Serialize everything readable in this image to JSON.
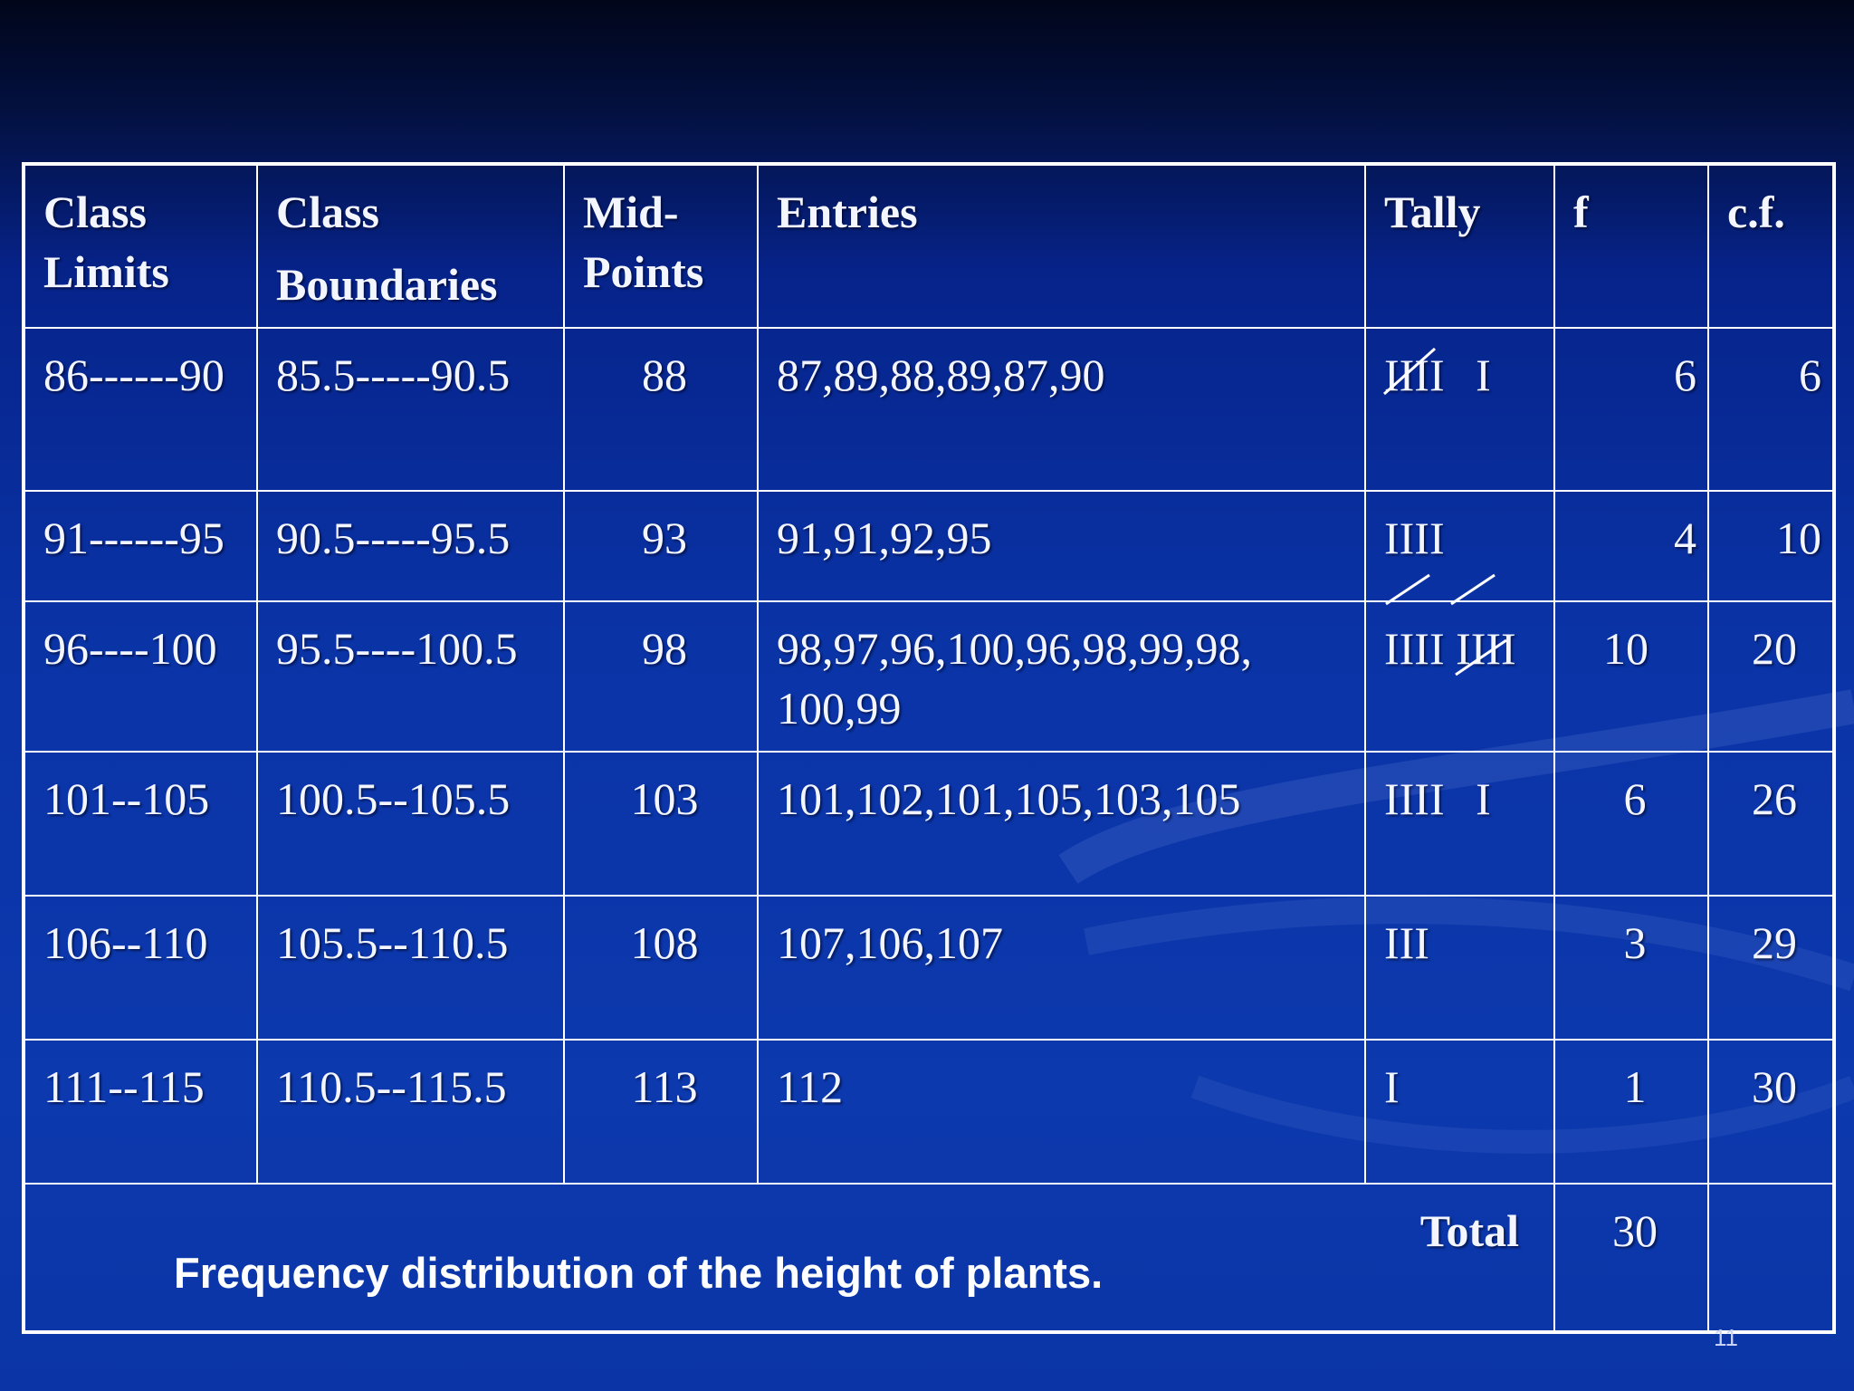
{
  "table": {
    "headers": {
      "class_limits": [
        "Class",
        "Limits"
      ],
      "class_boundaries": [
        "Class",
        "Boundaries"
      ],
      "mid_points": [
        "Mid-",
        "Points"
      ],
      "entries": "Entries",
      "tally": "Tally",
      "f": "f",
      "cf": "c.f."
    },
    "rows": [
      {
        "limits": "86------90",
        "boundaries": "85.5-----90.5",
        "mid": "88",
        "entries": "87,89,88,89,87,90",
        "tally_group": "IIII",
        "tally_extra": "I",
        "f": "6",
        "cf": "6"
      },
      {
        "limits": "91------95",
        "boundaries": "90.5-----95.5",
        "mid": "93",
        "entries": "91,91,92,95",
        "tally_group": "IIII",
        "tally_extra": "",
        "f": "4",
        "cf": "10"
      },
      {
        "limits": "96----100",
        "boundaries": "95.5----100.5",
        "mid": "98",
        "entries": "98,97,96,100,96,98,99,98,",
        "entries_line2": "100,99",
        "tally_group": "IIII",
        "tally_group2": "IIII",
        "f": "10",
        "cf": "20"
      },
      {
        "limits": "101--105",
        "boundaries": "100.5--105.5",
        "mid": "103",
        "entries": "101,102,101,105,103,105",
        "tally_group": "IIII",
        "tally_extra": "I",
        "f": "6",
        "cf": "26"
      },
      {
        "limits": "106--110",
        "boundaries": "105.5--110.5",
        "mid": "108",
        "entries": "107,106,107",
        "tally_group": "III",
        "tally_extra": "",
        "f": "3",
        "cf": "29"
      },
      {
        "limits": "111--115",
        "boundaries": "110.5--115.5",
        "mid": "113",
        "entries": "112",
        "tally_group": "I",
        "tally_extra": "",
        "f": "1",
        "cf": "30"
      }
    ],
    "total_label": "Total",
    "total_f": "30"
  },
  "caption": "Frequency distribution of the height of plants.",
  "page_number": "11",
  "colors": {
    "background_top": "#01061a",
    "background_main": "#0a33a6",
    "grid_lines": "#ffffff",
    "text": "#f3f5ff"
  }
}
